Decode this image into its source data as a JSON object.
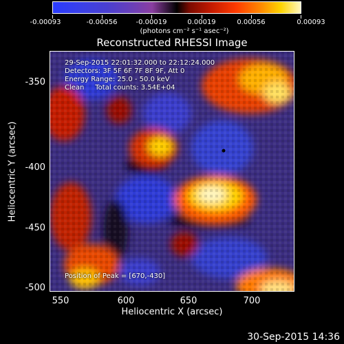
{
  "colorbar": {
    "labels": [
      "-0.00093",
      "-0.00056",
      "-0.00019",
      "0.00019",
      "0.00056",
      "0.00093"
    ],
    "unit_label": "(photons cm⁻² s⁻¹ asec⁻²)"
  },
  "title": "Reconstructed RHESSI Image",
  "info": {
    "line1": "29-Sep-2015 22:01:32.000 to 22:12:24.000",
    "line2": "Detectors: 3F 5F 6F 7F 8F 9F, Att 0",
    "line3": "Energy Range: 25.0 - 50.0 keV",
    "line4": "Clean     Total counts: 3.54E+04"
  },
  "peak_label": "Position of Peak = [670,-430]",
  "axes": {
    "xlabel": "Heliocentric X (arcsec)",
    "ylabel": "Heliocentric Y (arcsec)",
    "xticks": [
      "550",
      "600",
      "650",
      "700"
    ],
    "yticks": [
      "-350",
      "-400",
      "-450",
      "-500"
    ]
  },
  "datestamp": "30-Sep-2015 14:36",
  "colors": {
    "background": "#000000",
    "negative": "#3b40e6",
    "positive_hot": "#ff3b00",
    "peak": "#fff6c0"
  }
}
